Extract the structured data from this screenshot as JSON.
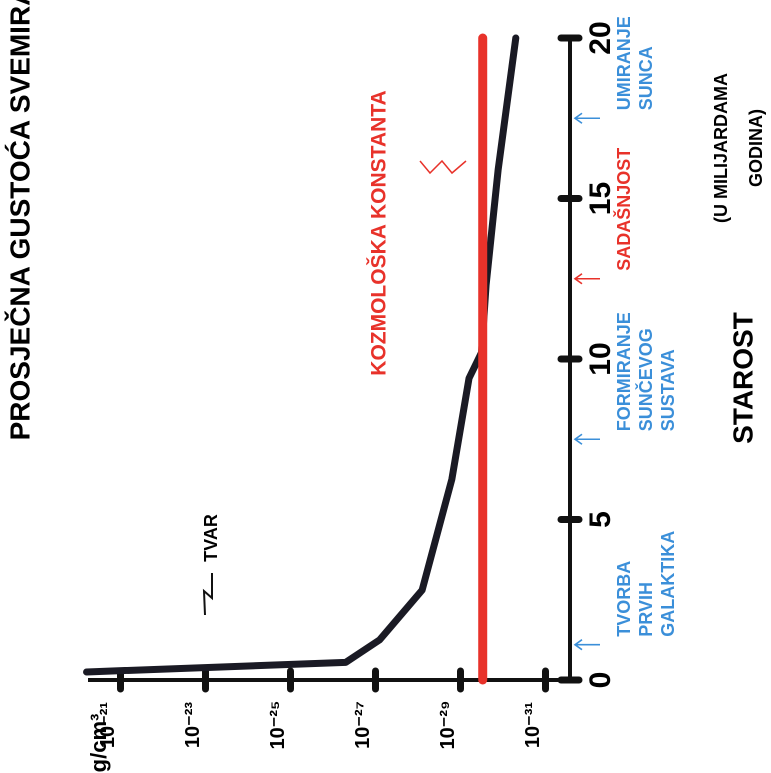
{
  "chart_data": {
    "type": "line",
    "title": "PROSJEČNA GUSTOĆA SVEMIRA",
    "y_label": "g/cm³",
    "x_label": "STAROST",
    "x_label_note": [
      "(U MILIJARDAMA",
      "GODINA)"
    ],
    "xlim": [
      0,
      20
    ],
    "xticks": [
      0,
      5,
      10,
      15,
      20
    ],
    "ylim": [
      1e-20,
      1e-32
    ],
    "log_y": true,
    "yticks": [
      {
        "value": 1e-21,
        "label": "10⁻²¹"
      },
      {
        "value": 1e-23,
        "label": "10⁻²³"
      },
      {
        "value": 1e-25,
        "label": "10⁻²⁵"
      },
      {
        "value": 1e-27,
        "label": "10⁻²⁷"
      },
      {
        "value": 1e-29,
        "label": "10⁻²⁹"
      },
      {
        "value": 1e-31,
        "label": "10⁻³¹"
      }
    ],
    "series": [
      {
        "name": "TVAR",
        "color": "#1a1a24",
        "x": [
          0.25,
          0.55,
          1.25,
          2.8,
          6.25,
          9.4,
          10.2,
          12.3,
          15.9,
          20
        ],
        "values": [
          6.3e-21,
          5e-27,
          8e-28,
          8e-29,
          1.6e-29,
          6.3e-30,
          3.2e-30,
          2.5e-30,
          1.3e-30,
          5e-31
        ]
      },
      {
        "name": "KOZMOLOŠKA KONSTANTA",
        "color": "#e8322a",
        "x": [
          0,
          20
        ],
        "values": [
          3e-30,
          3e-30
        ]
      }
    ],
    "events": [
      {
        "x": 1.1,
        "lines": [
          "TVORBA",
          "PRVIH",
          "GALAKTIKA"
        ],
        "color": "#3b8fd9"
      },
      {
        "x": 7.5,
        "lines": [
          "FORMIRANJE",
          "SUNČEVOG",
          "SUSTAVA"
        ],
        "color": "#3b8fd9"
      },
      {
        "x": 12.5,
        "lines": [
          "SADAŠNJOST"
        ],
        "color": "#e8322a"
      },
      {
        "x": 17.5,
        "lines": [
          "UMIRANJE",
          "SUNCA"
        ],
        "color": "#3b8fd9"
      }
    ]
  }
}
